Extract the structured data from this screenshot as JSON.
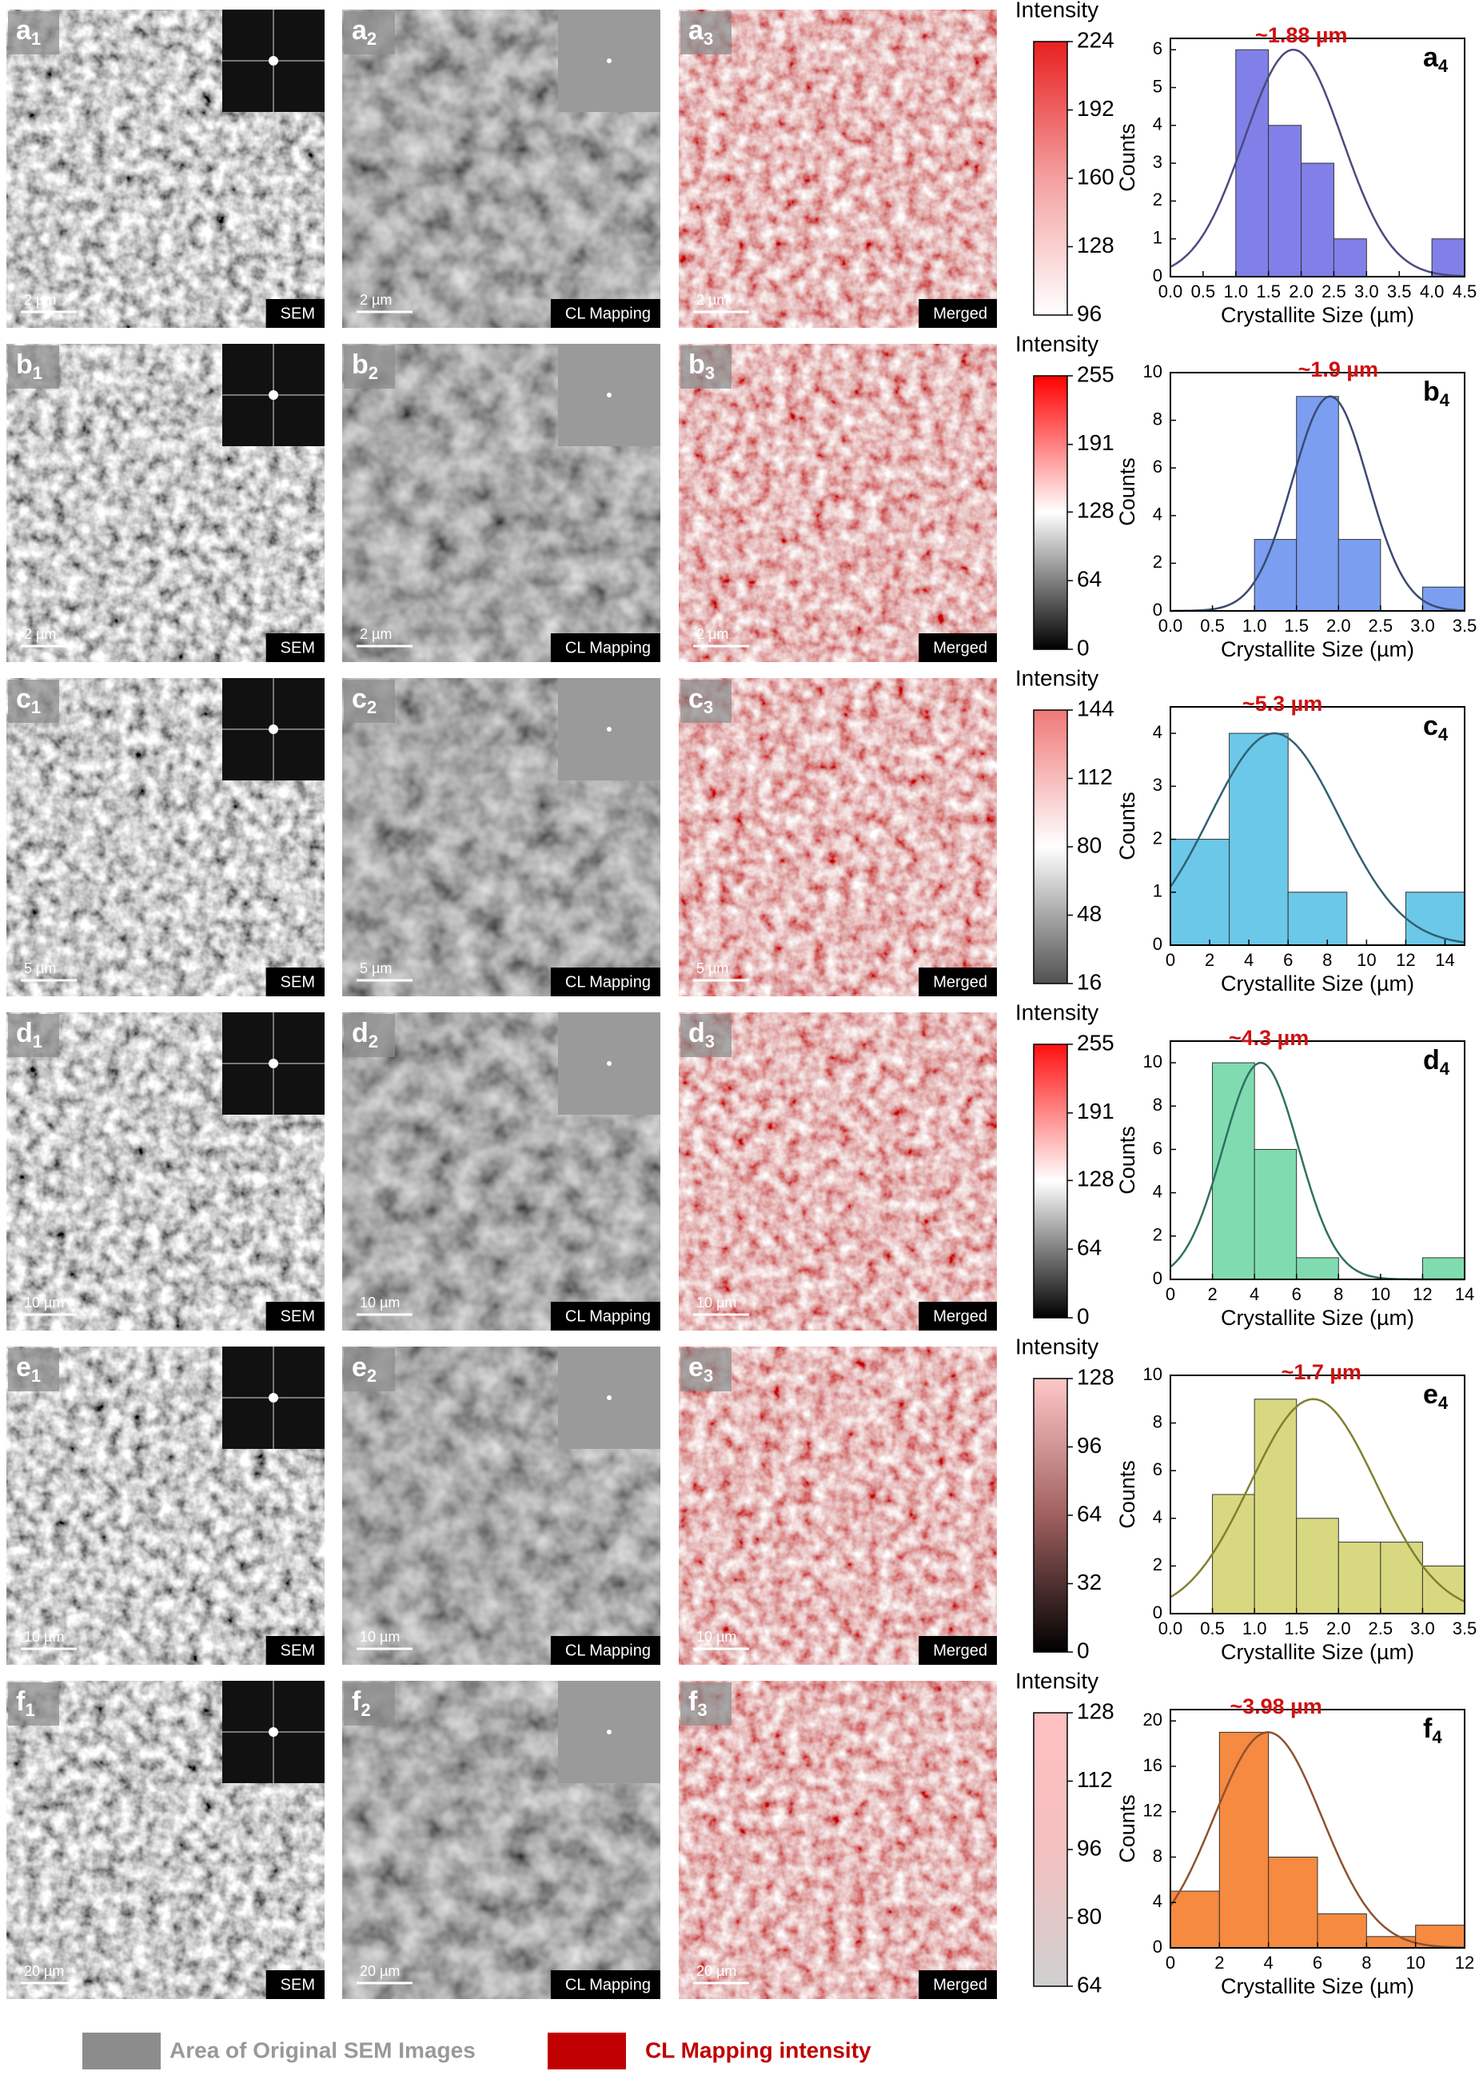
{
  "rows": [
    {
      "images": [
        {
          "label": [
            "a",
            "1"
          ],
          "scale_bar": "2 µm",
          "tag": "SEM"
        },
        {
          "label": [
            "a",
            "2"
          ],
          "scale_bar": "2 µm",
          "tag": "CL Mapping"
        },
        {
          "label": [
            "a",
            "3"
          ],
          "scale_bar": "2 µm",
          "tag": "Merged"
        }
      ],
      "colorbar": {
        "title": "Intensity",
        "colors": [
          "#ffffff",
          "#f4a0a0",
          "#e82020"
        ],
        "lim": [
          96,
          224
        ],
        "ticks": [
          96,
          128,
          160,
          192,
          224
        ]
      }
    },
    {
      "images": [
        {
          "label": [
            "b",
            "1"
          ],
          "scale_bar": "2 µm",
          "tag": "SEM"
        },
        {
          "label": [
            "b",
            "2"
          ],
          "scale_bar": "2 µm",
          "tag": "CL Mapping"
        },
        {
          "label": [
            "b",
            "3"
          ],
          "scale_bar": "2 µm",
          "tag": "Merged"
        }
      ],
      "colorbar": {
        "title": "Intensity",
        "colors": [
          "#000000",
          "#ffffff",
          "#ff0000"
        ],
        "lim": [
          0,
          255
        ],
        "ticks": [
          0,
          64,
          128,
          191,
          255
        ]
      }
    },
    {
      "images": [
        {
          "label": [
            "c",
            "1"
          ],
          "scale_bar": "5 µm",
          "tag": "SEM"
        },
        {
          "label": [
            "c",
            "2"
          ],
          "scale_bar": "5 µm",
          "tag": "CL Mapping"
        },
        {
          "label": [
            "c",
            "3"
          ],
          "scale_bar": "5 µm",
          "tag": "Merged"
        }
      ],
      "colorbar": {
        "title": "Intensity",
        "colors": [
          "#505050",
          "#ffffff",
          "#f07878"
        ],
        "lim": [
          16,
          144
        ],
        "ticks": [
          16,
          48,
          80,
          112,
          144
        ]
      }
    },
    {
      "images": [
        {
          "label": [
            "d",
            "1"
          ],
          "scale_bar": "10 µm",
          "tag": "SEM"
        },
        {
          "label": [
            "d",
            "2"
          ],
          "scale_bar": "10 µm",
          "tag": "CL Mapping"
        },
        {
          "label": [
            "d",
            "3"
          ],
          "scale_bar": "10 µm",
          "tag": "Merged"
        }
      ],
      "colorbar": {
        "title": "Intensity",
        "colors": [
          "#000000",
          "#ffffff",
          "#ff1010"
        ],
        "lim": [
          0,
          255
        ],
        "ticks": [
          0,
          64,
          128,
          191,
          255
        ]
      }
    },
    {
      "images": [
        {
          "label": [
            "e",
            "1"
          ],
          "scale_bar": "10 µm",
          "tag": "SEM"
        },
        {
          "label": [
            "e",
            "2"
          ],
          "scale_bar": "10 µm",
          "tag": "CL Mapping"
        },
        {
          "label": [
            "e",
            "3"
          ],
          "scale_bar": "10 µm",
          "tag": "Merged"
        }
      ],
      "colorbar": {
        "title": "Intensity",
        "colors": [
          "#000000",
          "#a06060",
          "#ffc8c8"
        ],
        "lim": [
          0,
          128
        ],
        "ticks": [
          0,
          32,
          64,
          96,
          128
        ]
      }
    },
    {
      "images": [
        {
          "label": [
            "f",
            "1"
          ],
          "scale_bar": "20 µm",
          "tag": "SEM"
        },
        {
          "label": [
            "f",
            "2"
          ],
          "scale_bar": "20 µm",
          "tag": "CL Mapping"
        },
        {
          "label": [
            "f",
            "3"
          ],
          "scale_bar": "20 µm",
          "tag": "Merged"
        }
      ],
      "colorbar": {
        "title": "Intensity",
        "colors": [
          "#d0d0d0",
          "#f4c0c0",
          "#ffc0c0"
        ],
        "lim": [
          64,
          128
        ],
        "ticks": [
          64,
          80,
          96,
          112,
          128
        ]
      }
    }
  ],
  "chart_data": [
    {
      "type": "histogram",
      "panel_label": [
        "a",
        "4"
      ],
      "annotation": "~1.88 µm",
      "x_label": "Crystallite Size (µm)",
      "y_label": "Counts",
      "color": "#8080e8",
      "bins": [
        1.0,
        1.5,
        2.0,
        2.5,
        3.0,
        3.5,
        4.0,
        4.5
      ],
      "values": [
        6,
        4,
        3,
        1,
        0,
        0,
        1
      ],
      "fit": {
        "center": 1.88,
        "sigma": 0.75,
        "peak": 6,
        "color": "#4a4a80"
      },
      "xlim": [
        0,
        4.5
      ],
      "xticks": [
        {
          "value": 0,
          "label": "0.0"
        },
        0.5,
        {
          "value": 1,
          "label": "1.0"
        },
        1.5,
        {
          "value": 2,
          "label": "2.0"
        },
        2.5,
        {
          "value": 3,
          "label": "3.0"
        },
        3.5,
        {
          "value": 4,
          "label": "4.0"
        },
        4.5
      ],
      "ylim": [
        0,
        6.3
      ],
      "yticks": [
        0,
        1,
        2,
        3,
        4,
        5,
        6
      ]
    },
    {
      "type": "histogram",
      "panel_label": [
        "b",
        "4"
      ],
      "annotation": "~1.9 µm",
      "x_label": "Crystallite Size (µm)",
      "y_label": "Counts",
      "color": "#7b9ef0",
      "bins": [
        1.0,
        1.5,
        2.0,
        2.5,
        3.0,
        3.5
      ],
      "values": [
        3,
        9,
        3,
        0,
        1
      ],
      "fit": {
        "center": 1.9,
        "sigma": 0.45,
        "peak": 9,
        "color": "#3a4a70"
      },
      "xlim": [
        0,
        3.5
      ],
      "xticks": [
        {
          "value": 0,
          "label": "0.0"
        },
        0.5,
        {
          "value": 1,
          "label": "1.0"
        },
        1.5,
        {
          "value": 2,
          "label": "2.0"
        },
        2.5,
        {
          "value": 3,
          "label": "3.0"
        },
        3.5
      ],
      "ylim": [
        0,
        10
      ],
      "yticks": [
        0,
        2,
        4,
        6,
        8,
        10
      ]
    },
    {
      "type": "histogram",
      "panel_label": [
        "c",
        "4"
      ],
      "annotation": "~5.3 µm",
      "x_label": "Crystallite Size (µm)",
      "y_label": "Counts",
      "color": "#6cc8e8",
      "bins": [
        0,
        3,
        6,
        9,
        12,
        15
      ],
      "values": [
        2,
        4,
        1,
        0,
        1
      ],
      "fit": {
        "center": 5.3,
        "sigma": 3.3,
        "peak": 4,
        "color": "#306070"
      },
      "xlim": [
        0,
        15
      ],
      "xticks": [
        0,
        2,
        4,
        6,
        8,
        10,
        12,
        14
      ],
      "ylim": [
        0,
        4.5
      ],
      "yticks": [
        0,
        1,
        2,
        3,
        4
      ]
    },
    {
      "type": "histogram",
      "panel_label": [
        "d",
        "4"
      ],
      "annotation": "~4.3 µm",
      "x_label": "Crystallite Size (µm)",
      "y_label": "Counts",
      "color": "#80dcb0",
      "bins": [
        2,
        4,
        6,
        8,
        10,
        12,
        14
      ],
      "values": [
        10,
        6,
        1,
        0,
        0,
        1
      ],
      "fit": {
        "center": 4.3,
        "sigma": 1.8,
        "peak": 10,
        "color": "#307060"
      },
      "xlim": [
        0,
        14
      ],
      "xticks": [
        0,
        2,
        4,
        6,
        8,
        10,
        12,
        14
      ],
      "ylim": [
        0,
        11
      ],
      "yticks": [
        0,
        2,
        4,
        6,
        8,
        10
      ]
    },
    {
      "type": "histogram",
      "panel_label": [
        "e",
        "4"
      ],
      "annotation": "~1.7 µm",
      "x_label": "Crystallite Size (µm)",
      "y_label": "Counts",
      "color": "#d8d880",
      "bins": [
        0.5,
        1.0,
        1.5,
        2.0,
        2.5,
        3.0,
        3.5
      ],
      "values": [
        5,
        9,
        4,
        3,
        3,
        2
      ],
      "fit": {
        "center": 1.7,
        "sigma": 0.75,
        "peak": 9,
        "color": "#808030"
      },
      "xlim": [
        0,
        3.5
      ],
      "xticks": [
        {
          "value": 0,
          "label": "0.0"
        },
        0.5,
        {
          "value": 1,
          "label": "1.0"
        },
        1.5,
        {
          "value": 2,
          "label": "2.0"
        },
        2.5,
        {
          "value": 3,
          "label": "3.0"
        },
        3.5
      ],
      "ylim": [
        0,
        10
      ],
      "yticks": [
        0,
        2,
        4,
        6,
        8,
        10
      ]
    },
    {
      "type": "histogram",
      "panel_label": [
        "f",
        "4"
      ],
      "annotation": "~3.98 µm",
      "x_label": "Crystallite Size (µm)",
      "y_label": "Counts",
      "color": "#f58a40",
      "bins": [
        0,
        2,
        4,
        6,
        8,
        10,
        12
      ],
      "values": [
        5,
        19,
        8,
        3,
        1,
        2
      ],
      "fit": {
        "center": 3.98,
        "sigma": 2.2,
        "peak": 19,
        "color": "#905030"
      },
      "xlim": [
        0,
        12
      ],
      "xticks": [
        0,
        2,
        4,
        6,
        8,
        10,
        12
      ],
      "ylim": [
        0,
        21
      ],
      "yticks": [
        0,
        4,
        8,
        12,
        16,
        20
      ]
    }
  ],
  "legend": [
    {
      "label": "Area of Original SEM Images",
      "color": "#8c8c8c"
    },
    {
      "label": "CL Mapping intensity",
      "color": "#c00000"
    }
  ]
}
